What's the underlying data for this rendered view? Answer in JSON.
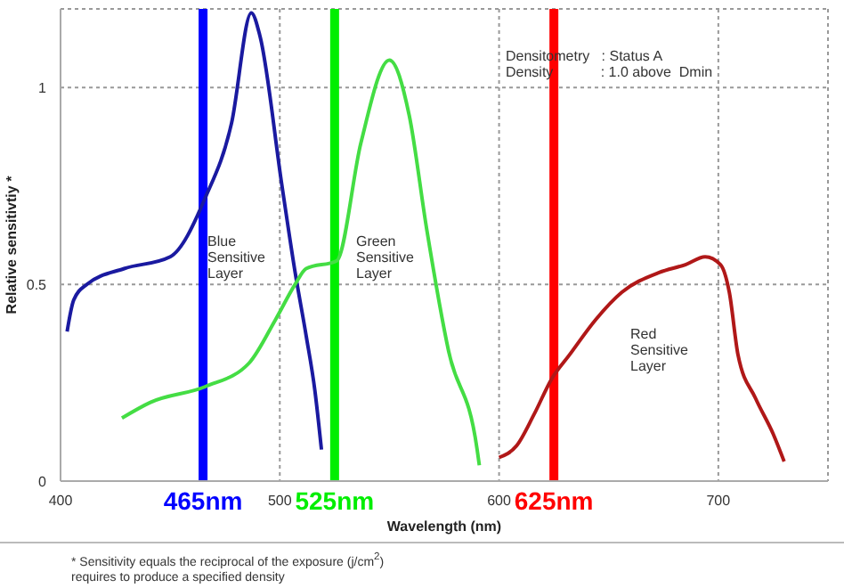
{
  "chart_data": {
    "type": "line",
    "ylabel": "Relative sensitivtiy *",
    "xlabel": "Wavelength (nm)",
    "xlim": [
      400,
      750
    ],
    "xticks": [
      400,
      500,
      600,
      700
    ],
    "ylim": [
      0,
      1.2
    ],
    "yticks": [
      0,
      0.5,
      1
    ],
    "grid": true,
    "legend": false,
    "marker": "none",
    "line_style": "solid",
    "series": [
      {
        "color": "#1a1aa0",
        "x": [
          403,
          406,
          412,
          429,
          450,
          466,
          478,
          487,
          491,
          501,
          507,
          512,
          516,
          519
        ],
        "values": [
          0.38,
          0.46,
          0.5,
          0.54,
          0.57,
          0.72,
          0.91,
          1.19,
          1.13,
          0.75,
          0.53,
          0.37,
          0.23,
          0.08
        ]
      },
      {
        "color": "#44dd44",
        "x": [
          428,
          441,
          466,
          486,
          498,
          507,
          512,
          526,
          537,
          550,
          559,
          567,
          577,
          590,
          591
        ],
        "values": [
          0.16,
          0.2,
          0.24,
          0.3,
          0.41,
          0.5,
          0.54,
          0.56,
          0.86,
          1.07,
          0.93,
          0.64,
          0.33,
          0.08,
          0.04
        ]
      },
      {
        "color": "#b01818",
        "x": [
          600,
          608,
          616,
          624,
          632,
          644,
          656,
          673,
          685,
          694,
          701,
          705,
          709,
          717,
          725,
          730
        ],
        "values": [
          0.06,
          0.09,
          0.17,
          0.26,
          0.32,
          0.41,
          0.48,
          0.53,
          0.55,
          0.57,
          0.55,
          0.48,
          0.32,
          0.21,
          0.12,
          0.05
        ]
      }
    ],
    "ref_lines": [
      {
        "axis": "x",
        "value": 465,
        "label": "465nm",
        "color": "#0000ff"
      },
      {
        "axis": "x",
        "value": 525,
        "label": "525nm",
        "color": "#00ee00"
      },
      {
        "axis": "x",
        "value": 625,
        "label": "625nm",
        "color": "#ff0000"
      }
    ],
    "annotations": [
      {
        "text": "Blue Sensitive Layer",
        "x": 467,
        "y": 0.63
      },
      "Green Sensitive Layer",
      "Red Sensitive Layer",
      "Densitometry   : Status A",
      "Density            : 1.0 above  Dmin",
      "* Sensitivity equals the reciprocal of the exposure (j/cm$^{2}$) requires to produce a specified density"
    ]
  }
}
